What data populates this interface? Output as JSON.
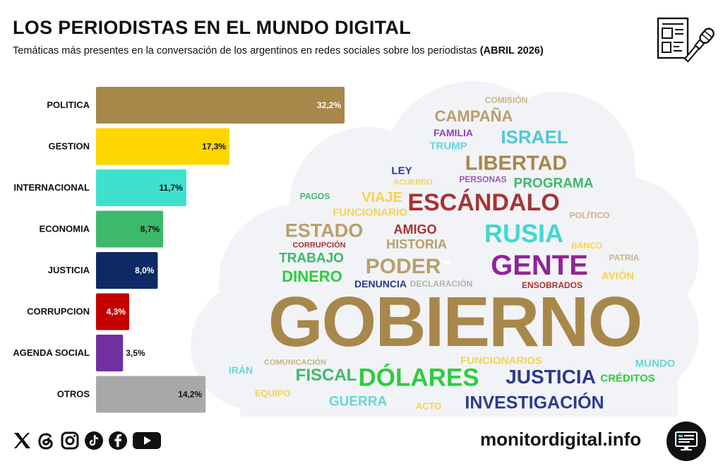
{
  "header": {
    "title": "LOS PERIODISTAS EN EL MUNDO DIGITAL",
    "subtitle": "Temáticas más presentes en la conversación de los argentinos en redes sociales sobre los periodistas",
    "period": "(ABRIL 2026)"
  },
  "chart_data": {
    "type": "bar",
    "orientation": "horizontal",
    "title": "LOS PERIODISTAS EN EL MUNDO DIGITAL",
    "categories": [
      "POLITICA",
      "GESTION",
      "INTERNACIONAL",
      "ECONOMIA",
      "JUSTICIA",
      "CORRUPCION",
      "AGENDA SOCIAL",
      "OTROS"
    ],
    "values": [
      32.2,
      17.3,
      11.7,
      8.7,
      8.0,
      4.3,
      3.5,
      14.2
    ],
    "labels": [
      "32,2%",
      "17,3%",
      "11,7%",
      "8,7%",
      "8,0%",
      "4,3%",
      "3,5%",
      "14,2%"
    ],
    "colors": [
      "#A8874B",
      "#FFD700",
      "#40E0D0",
      "#3CB96A",
      "#0E2A66",
      "#C20000",
      "#7030A0",
      "#A8A8A8"
    ],
    "label_colors": [
      "#ffffff",
      "#111111",
      "#111111",
      "#111111",
      "#ffffff",
      "#ffffff",
      "#111111",
      "#111111"
    ],
    "xlim": [
      0,
      40
    ],
    "unit": "%"
  },
  "word_cloud": [
    {
      "text": "COMISIÓN",
      "color": "#C9B48A"
    },
    {
      "text": "CAMPAÑA",
      "color": "#B8A06A"
    },
    {
      "text": "FAMILIA",
      "color": "#8E44AD"
    },
    {
      "text": "ISRAEL",
      "color": "#4CC9D6"
    },
    {
      "text": "TRUMP",
      "color": "#66D6DA"
    },
    {
      "text": "LEY",
      "color": "#2B3A8C"
    },
    {
      "text": "ACUERDO",
      "color": "#F3D44C"
    },
    {
      "text": "LIBERTAD",
      "color": "#A8874B"
    },
    {
      "text": "PERSONAS",
      "color": "#9B59B6"
    },
    {
      "text": "PROGRAMA",
      "color": "#3CB96A"
    },
    {
      "text": "PAGOS",
      "color": "#3CB96A"
    },
    {
      "text": "VIAJE",
      "color": "#F3D44C"
    },
    {
      "text": "ESCÁNDALO",
      "color": "#A83232"
    },
    {
      "text": "FUNCIONARIO",
      "color": "#F3D44C"
    },
    {
      "text": "POLÍTICO",
      "color": "#C9B48A"
    },
    {
      "text": "ESTADO",
      "color": "#B8A06A"
    },
    {
      "text": "AMIGO",
      "color": "#A83232"
    },
    {
      "text": "RUSIA",
      "color": "#40D8D0"
    },
    {
      "text": "CORRUPCIÓN",
      "color": "#A83232"
    },
    {
      "text": "HISTORIA",
      "color": "#B8A06A"
    },
    {
      "text": "BANCO",
      "color": "#F3D44C"
    },
    {
      "text": "TRABAJO",
      "color": "#3CB96A"
    },
    {
      "text": "PATRIA",
      "color": "#C9B48A"
    },
    {
      "text": "PODER",
      "color": "#B8A06A"
    },
    {
      "text": "GENTE",
      "color": "#8E2596"
    },
    {
      "text": "DINERO",
      "color": "#2ECC40"
    },
    {
      "text": "AVIÓN",
      "color": "#F3D44C"
    },
    {
      "text": "DENUNCIA",
      "color": "#2B3A8C"
    },
    {
      "text": "DECLARACIÓN",
      "color": "#B0B0B0"
    },
    {
      "text": "ENSOBRADOS",
      "color": "#A83232"
    },
    {
      "text": "GOBIERNO",
      "color": "#A8874B"
    },
    {
      "text": "COMUNICACIÓN",
      "color": "#C9B48A"
    },
    {
      "text": "FUNCIONARIOS",
      "color": "#F3D44C"
    },
    {
      "text": "IRÁN",
      "color": "#66D6DA"
    },
    {
      "text": "FISCAL",
      "color": "#3CB96A"
    },
    {
      "text": "DÓLARES",
      "color": "#2ECC40"
    },
    {
      "text": "JUSTICIA",
      "color": "#2B3A8C"
    },
    {
      "text": "MUNDO",
      "color": "#66D6DA"
    },
    {
      "text": "CRÉDITOS",
      "color": "#2ECC40"
    },
    {
      "text": "EQUIPO",
      "color": "#F3D44C"
    },
    {
      "text": "GUERRA",
      "color": "#66D6DA"
    },
    {
      "text": "ACTO",
      "color": "#F3D44C"
    },
    {
      "text": "INVESTIGACIÓN",
      "color": "#2B3A8C"
    }
  ],
  "footer": {
    "website": "monitordigital.info",
    "social_icons": [
      "x-icon",
      "threads-icon",
      "instagram-icon",
      "tiktok-icon",
      "facebook-icon",
      "youtube-icon"
    ]
  }
}
